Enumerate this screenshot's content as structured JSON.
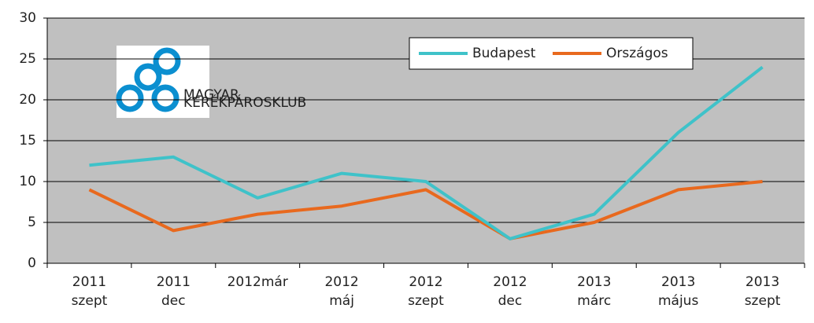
{
  "chart_data": {
    "type": "line",
    "categories": [
      "2011 szept",
      "2011 dec",
      "2012már",
      "2012 máj",
      "2012 szept",
      "2012 dec",
      "2013 márc",
      "2013 május",
      "2013 szept"
    ],
    "series": [
      {
        "name": "Budapest",
        "color": "#3fc2c9",
        "values": [
          12,
          13,
          8,
          11,
          10,
          3,
          6,
          16,
          24
        ]
      },
      {
        "name": "Országos",
        "color": "#e8691e",
        "values": [
          9,
          4,
          6,
          7,
          9,
          3,
          5,
          9,
          10
        ]
      }
    ],
    "ylim": [
      0,
      30
    ],
    "yticks": [
      0,
      5,
      10,
      15,
      20,
      25,
      30
    ],
    "grid": true,
    "legend": "top-right",
    "background": "#c0c0c0"
  },
  "logo": {
    "lines": [
      "MAGYAR",
      "KERÉKPÁROSKLUB"
    ]
  }
}
